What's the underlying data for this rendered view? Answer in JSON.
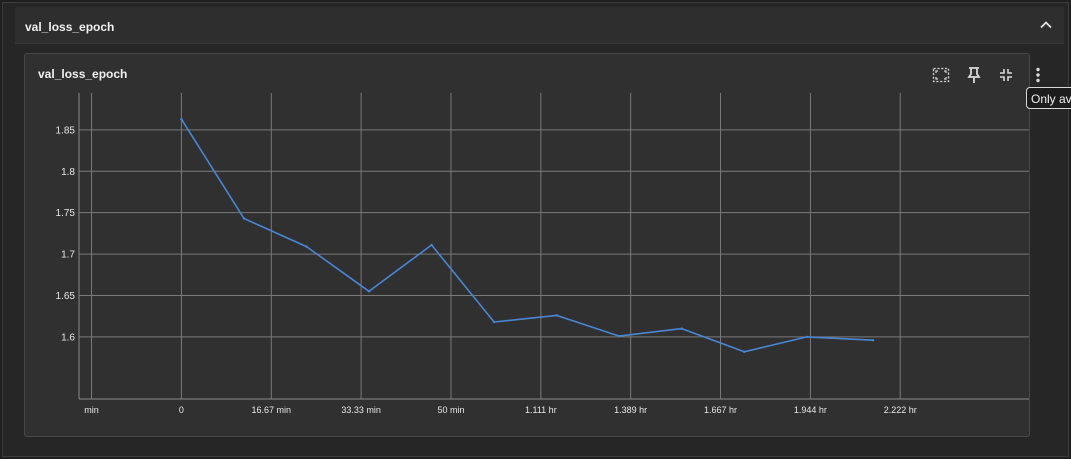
{
  "group": {
    "title": "val_loss_epoch"
  },
  "card": {
    "title": "val_loss_epoch"
  },
  "toolbar": {
    "fit_icon": "fit-domain-icon",
    "pin_icon": "pin-icon",
    "collapse_icon": "collapse-card-icon",
    "menu_icon": "more-vert-icon"
  },
  "tooltip": {
    "text": "Only av"
  },
  "colors": {
    "line": "#4a86d4",
    "grid": "#7a7a7a",
    "card_bg": "#303030"
  },
  "chart_data": {
    "type": "line",
    "title": "val_loss_epoch",
    "xlabel": "",
    "ylabel": "",
    "x_unit": "minutes",
    "xlim": [
      -19,
      160
    ],
    "ylim": [
      1.525,
      1.8945
    ],
    "grid": true,
    "legend": "none",
    "x_ticks": [
      {
        "value": -16.67,
        "label": "min"
      },
      {
        "value": 0,
        "label": "0"
      },
      {
        "value": 16.67,
        "label": "16.67 min"
      },
      {
        "value": 33.33,
        "label": "33.33 min"
      },
      {
        "value": 50,
        "label": "50 min"
      },
      {
        "value": 66.67,
        "label": "1.111 hr"
      },
      {
        "value": 83.33,
        "label": "1.389 hr"
      },
      {
        "value": 100,
        "label": "1.667 hr"
      },
      {
        "value": 116.67,
        "label": "1.944 hr"
      },
      {
        "value": 133.33,
        "label": "2.222 hr"
      }
    ],
    "y_ticks": [
      {
        "value": 1.85,
        "label": "1.85"
      },
      {
        "value": 1.8,
        "label": "1.8"
      },
      {
        "value": 1.75,
        "label": "1.75"
      },
      {
        "value": 1.7,
        "label": "1.7"
      },
      {
        "value": 1.65,
        "label": "1.65"
      },
      {
        "value": 1.6,
        "label": "1.6"
      }
    ],
    "series": [
      {
        "name": "val_loss_epoch",
        "x": [
          0,
          11.6,
          23.2,
          34.8,
          46.4,
          58.0,
          69.6,
          81.2,
          92.8,
          104.4,
          116.0,
          128.3
        ],
        "y": [
          1.863,
          1.743,
          1.709,
          1.655,
          1.711,
          1.618,
          1.626,
          1.601,
          1.61,
          1.582,
          1.6,
          1.596
        ]
      }
    ]
  }
}
